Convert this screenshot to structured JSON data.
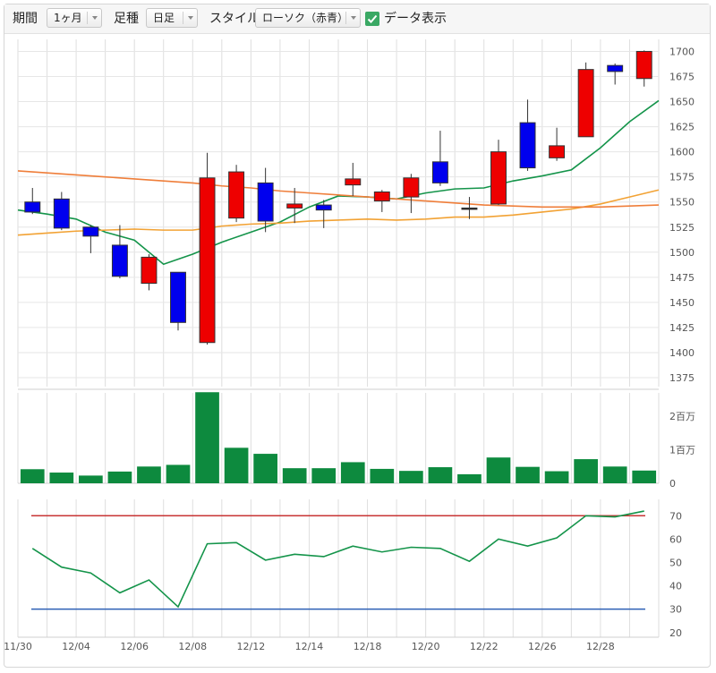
{
  "toolbar": {
    "period_label": "期間",
    "period_value": "1ヶ月",
    "interval_label": "足種",
    "interval_value": "日足",
    "style_label": "スタイル",
    "style_value": "ローソク（赤青）",
    "data_display_label": "データ表示",
    "data_display_checked": true
  },
  "chart_data": [
    {
      "type": "candlestick",
      "title": "",
      "x_labels": [
        "11/30",
        "12/04",
        "12/06",
        "12/08",
        "12/12",
        "12/14",
        "12/18",
        "12/20",
        "12/22",
        "12/26",
        "12/28"
      ],
      "y_ticks": [
        1700,
        1675,
        1650,
        1625,
        1600,
        1575,
        1550,
        1525,
        1500,
        1475,
        1450,
        1425,
        1400,
        1375
      ],
      "ylim": [
        1375,
        1712
      ],
      "up_color": "#ee0000",
      "down_color": "#0000ee",
      "candles": [
        {
          "o": 1550,
          "c": 1540,
          "h": 1564,
          "l": 1538
        },
        {
          "o": 1553,
          "c": 1524,
          "h": 1560,
          "l": 1522
        },
        {
          "o": 1525,
          "c": 1516,
          "h": 1527,
          "l": 1499
        },
        {
          "o": 1507,
          "c": 1476,
          "h": 1527,
          "l": 1474
        },
        {
          "o": 1469,
          "c": 1495,
          "h": 1498,
          "l": 1462
        },
        {
          "o": 1480,
          "c": 1430,
          "h": 1480,
          "l": 1422
        },
        {
          "o": 1410,
          "c": 1574,
          "h": 1599,
          "l": 1408
        },
        {
          "o": 1534,
          "c": 1580,
          "h": 1587,
          "l": 1530
        },
        {
          "o": 1569,
          "c": 1531,
          "h": 1584,
          "l": 1520
        },
        {
          "o": 1544,
          "c": 1548,
          "h": 1564,
          "l": 1529
        },
        {
          "o": 1547,
          "c": 1542,
          "h": 1552,
          "l": 1524
        },
        {
          "o": 1567,
          "c": 1573,
          "h": 1589,
          "l": 1556
        },
        {
          "o": 1551,
          "c": 1560,
          "h": 1562,
          "l": 1540
        },
        {
          "o": 1555,
          "c": 1574,
          "h": 1578,
          "l": 1539
        },
        {
          "o": 1590,
          "c": 1569,
          "h": 1621,
          "l": 1566
        },
        {
          "o": 1544,
          "c": 1544,
          "h": 1555,
          "l": 1533
        },
        {
          "o": 1548,
          "c": 1600,
          "h": 1612,
          "l": 1547
        },
        {
          "o": 1629,
          "c": 1584,
          "h": 1652,
          "l": 1581
        },
        {
          "o": 1594,
          "c": 1606,
          "h": 1624,
          "l": 1591
        },
        {
          "o": 1615,
          "c": 1682,
          "h": 1689,
          "l": 1615
        },
        {
          "o": 1686,
          "c": 1680,
          "h": 1688,
          "l": 1667
        },
        {
          "o": 1673,
          "c": 1700,
          "h": 1701,
          "l": 1665
        }
      ],
      "moving_averages": [
        {
          "color": "#14944a",
          "values": [
            1542,
            1538,
            1533,
            1520,
            1512,
            1488,
            1498,
            1510,
            1520,
            1530,
            1545,
            1556,
            1555,
            1553,
            1559,
            1563,
            1564,
            1571,
            1576,
            1582,
            1604,
            1630,
            1651
          ]
        },
        {
          "color": "#f2a234",
          "values": [
            1517,
            1519,
            1521,
            1522,
            1523,
            1522,
            1522,
            1526,
            1528,
            1529,
            1531,
            1532,
            1533,
            1532,
            1533,
            1535,
            1535,
            1537,
            1540,
            1543,
            1548,
            1555,
            1562
          ]
        },
        {
          "color": "#ef7e3a",
          "values": [
            1581,
            1579,
            1577,
            1575,
            1573,
            1571,
            1569,
            1566,
            1564,
            1561,
            1559,
            1557,
            1555,
            1553,
            1551,
            1549,
            1547,
            1546,
            1545,
            1545,
            1545,
            1546,
            1547
          ]
        }
      ]
    },
    {
      "type": "bar",
      "title": "",
      "y_ticks": [
        {
          "value": 2000000,
          "label": "2百万"
        },
        {
          "value": 1000000,
          "label": "1百万"
        },
        {
          "value": 0,
          "label": "0"
        }
      ],
      "ylim": [
        0,
        2700000
      ],
      "bar_color": "#0d8a3e",
      "values": [
        420000,
        320000,
        230000,
        350000,
        500000,
        550000,
        2720000,
        1060000,
        880000,
        450000,
        450000,
        630000,
        430000,
        370000,
        480000,
        270000,
        770000,
        490000,
        360000,
        720000,
        500000,
        380000
      ]
    },
    {
      "type": "line",
      "title": "",
      "y_ticks": [
        70,
        60,
        50,
        40,
        30,
        20
      ],
      "ylim": [
        18,
        77
      ],
      "upper_line": {
        "value": 70,
        "color": "#c83434"
      },
      "lower_line": {
        "value": 30,
        "color": "#2d5fb5"
      },
      "series": [
        {
          "color": "#14944a",
          "values": [
            56,
            48,
            45.5,
            37,
            42.5,
            31,
            58,
            58.5,
            51,
            53.5,
            52.5,
            57,
            54.5,
            56.5,
            56,
            50.5,
            60,
            57,
            60.5,
            70,
            69.5,
            72
          ]
        }
      ]
    }
  ]
}
